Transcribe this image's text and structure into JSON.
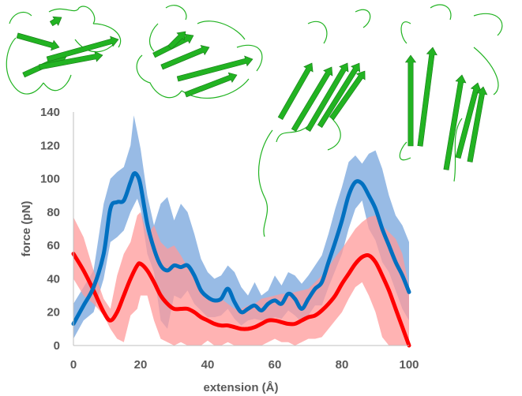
{
  "chart_data": {
    "type": "line",
    "title": "",
    "xlabel": "extension (Å)",
    "ylabel": "force (pN)",
    "xlim": [
      0,
      100
    ],
    "ylim": [
      0,
      140
    ],
    "xticks": [
      "0",
      "20",
      "40",
      "60",
      "80",
      "100"
    ],
    "yticks": [
      "0",
      "20",
      "40",
      "60",
      "80",
      "100",
      "120",
      "140"
    ],
    "grid": false,
    "legend": "none",
    "series": [
      {
        "color": "#0070c0",
        "band_color": "#8db4e2",
        "x": [
          0,
          3,
          6,
          9,
          11,
          13,
          15,
          17,
          18,
          19,
          20,
          22,
          24,
          26,
          28,
          30,
          32,
          34,
          36,
          38,
          40,
          42,
          44,
          46,
          48,
          50,
          52,
          54,
          56,
          58,
          60,
          62,
          64,
          66,
          68,
          70,
          72,
          74,
          76,
          78,
          80,
          82,
          84,
          86,
          88,
          90,
          92,
          94,
          96,
          98,
          100
        ],
        "mean": [
          13,
          24,
          35,
          55,
          82,
          86,
          87,
          98,
          103,
          102,
          96,
          73,
          58,
          48,
          45,
          48,
          47,
          48,
          42,
          33,
          29,
          27,
          28,
          34,
          26,
          20,
          22,
          24,
          21,
          25,
          27,
          25,
          31,
          28,
          22,
          28,
          34,
          38,
          50,
          62,
          75,
          90,
          98,
          97,
          90,
          82,
          70,
          60,
          50,
          42,
          32
        ],
        "upper": [
          25,
          35,
          45,
          85,
          100,
          104,
          107,
          120,
          138,
          128,
          118,
          90,
          72,
          85,
          89,
          75,
          85,
          80,
          67,
          52,
          44,
          40,
          42,
          48,
          44,
          35,
          30,
          38,
          30,
          33,
          42,
          36,
          44,
          42,
          37,
          42,
          48,
          54,
          67,
          82,
          95,
          110,
          114,
          109,
          115,
          117,
          106,
          90,
          78,
          72,
          62
        ],
        "lower": [
          4,
          15,
          20,
          40,
          62,
          65,
          69,
          80,
          84,
          88,
          82,
          55,
          44,
          15,
          10,
          30,
          28,
          33,
          25,
          21,
          17,
          17,
          18,
          22,
          16,
          12,
          15,
          16,
          15,
          16,
          17,
          16,
          21,
          18,
          14,
          18,
          24,
          24,
          35,
          45,
          55,
          70,
          82,
          87,
          70,
          63,
          50,
          44,
          33,
          22,
          15
        ]
      },
      {
        "color": "#ff0000",
        "band_color": "#ff9999",
        "x": [
          0,
          3,
          6,
          9,
          11,
          13,
          15,
          17,
          19,
          20,
          22,
          24,
          26,
          28,
          30,
          32,
          34,
          36,
          38,
          40,
          42,
          44,
          46,
          48,
          50,
          52,
          54,
          56,
          58,
          60,
          62,
          64,
          66,
          68,
          70,
          72,
          74,
          76,
          78,
          80,
          82,
          84,
          86,
          88,
          90,
          92,
          94,
          96,
          98,
          100
        ],
        "mean": [
          55,
          45,
          33,
          20,
          15,
          20,
          30,
          40,
          48,
          49,
          45,
          38,
          30,
          25,
          22,
          22,
          22,
          20,
          17,
          15,
          13,
          12,
          12,
          11,
          10,
          10,
          11,
          13,
          15,
          15,
          14,
          13,
          13,
          15,
          17,
          18,
          21,
          25,
          30,
          37,
          43,
          49,
          53,
          54,
          50,
          42,
          33,
          22,
          11,
          0
        ],
        "upper": [
          77,
          65,
          45,
          28,
          22,
          42,
          55,
          62,
          78,
          80,
          66,
          72,
          62,
          58,
          60,
          54,
          47,
          44,
          34,
          28,
          26,
          28,
          25,
          22,
          22,
          24,
          25,
          28,
          29,
          30,
          31,
          31,
          32,
          33,
          34,
          38,
          42,
          47,
          53,
          58,
          64,
          70,
          74,
          77,
          78,
          72,
          68,
          64,
          55,
          35
        ],
        "lower": [
          40,
          30,
          25,
          18,
          10,
          4,
          2,
          18,
          22,
          30,
          30,
          15,
          4,
          2,
          0,
          2,
          0,
          0,
          0,
          3,
          0,
          0,
          2,
          0,
          0,
          0,
          0,
          0,
          2,
          4,
          2,
          2,
          0,
          2,
          4,
          4,
          5,
          10,
          15,
          20,
          28,
          35,
          38,
          30,
          20,
          5,
          0,
          0,
          0,
          0
        ]
      }
    ]
  },
  "icons": {
    "structures": [
      "protein-structure-icon",
      "protein-structure-icon",
      "protein-structure-icon",
      "protein-structure-icon"
    ],
    "structure_color": "#22b322"
  }
}
